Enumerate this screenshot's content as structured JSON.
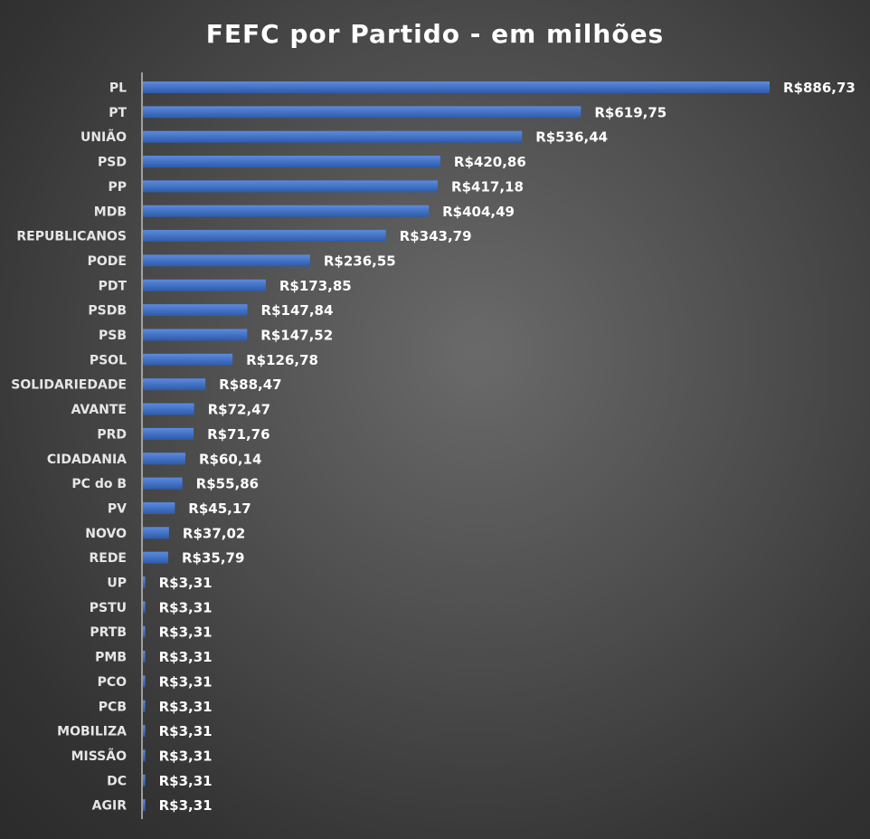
{
  "chart_data": {
    "type": "bar",
    "orientation": "horizontal",
    "title": "FEFC por Partido - em milhões",
    "xlabel": "",
    "ylabel": "",
    "value_prefix": "R$",
    "categories": [
      "PL",
      "PT",
      "UNIÃO",
      "PSD",
      "PP",
      "MDB",
      "REPUBLICANOS",
      "PODE",
      "PDT",
      "PSDB",
      "PSB",
      "PSOL",
      "SOLIDARIEDADE",
      "AVANTE",
      "PRD",
      "CIDADANIA",
      "PC do B",
      "PV",
      "NOVO",
      "REDE",
      "UP",
      "PSTU",
      "PRTB",
      "PMB",
      "PCO",
      "PCB",
      "MOBILIZA",
      "MISSÃO",
      "DC",
      "AGIR"
    ],
    "values": [
      886.73,
      619.75,
      536.44,
      420.86,
      417.18,
      404.49,
      343.79,
      236.55,
      173.85,
      147.84,
      147.52,
      126.78,
      88.47,
      72.47,
      71.76,
      60.14,
      55.86,
      45.17,
      37.02,
      35.79,
      3.31,
      3.31,
      3.31,
      3.31,
      3.31,
      3.31,
      3.31,
      3.31,
      3.31,
      3.31
    ],
    "labels": [
      "R$886,73",
      "R$619,75",
      "R$536,44",
      "R$420,86",
      "R$417,18",
      "R$404,49",
      "R$343,79",
      "R$236,55",
      "R$173,85",
      "R$147,84",
      "R$147,52",
      "R$126,78",
      "R$88,47",
      "R$72,47",
      "R$71,76",
      "R$60,14",
      "R$55,86",
      "R$45,17",
      "R$37,02",
      "R$35,79",
      "R$3,31",
      "R$3,31",
      "R$3,31",
      "R$3,31",
      "R$3,31",
      "R$3,31",
      "R$3,31",
      "R$3,31",
      "R$3,31",
      "R$3,31"
    ],
    "xlim": [
      0,
      886.73
    ],
    "grid": false,
    "legend": "none",
    "bar_color": "#4472C4"
  }
}
